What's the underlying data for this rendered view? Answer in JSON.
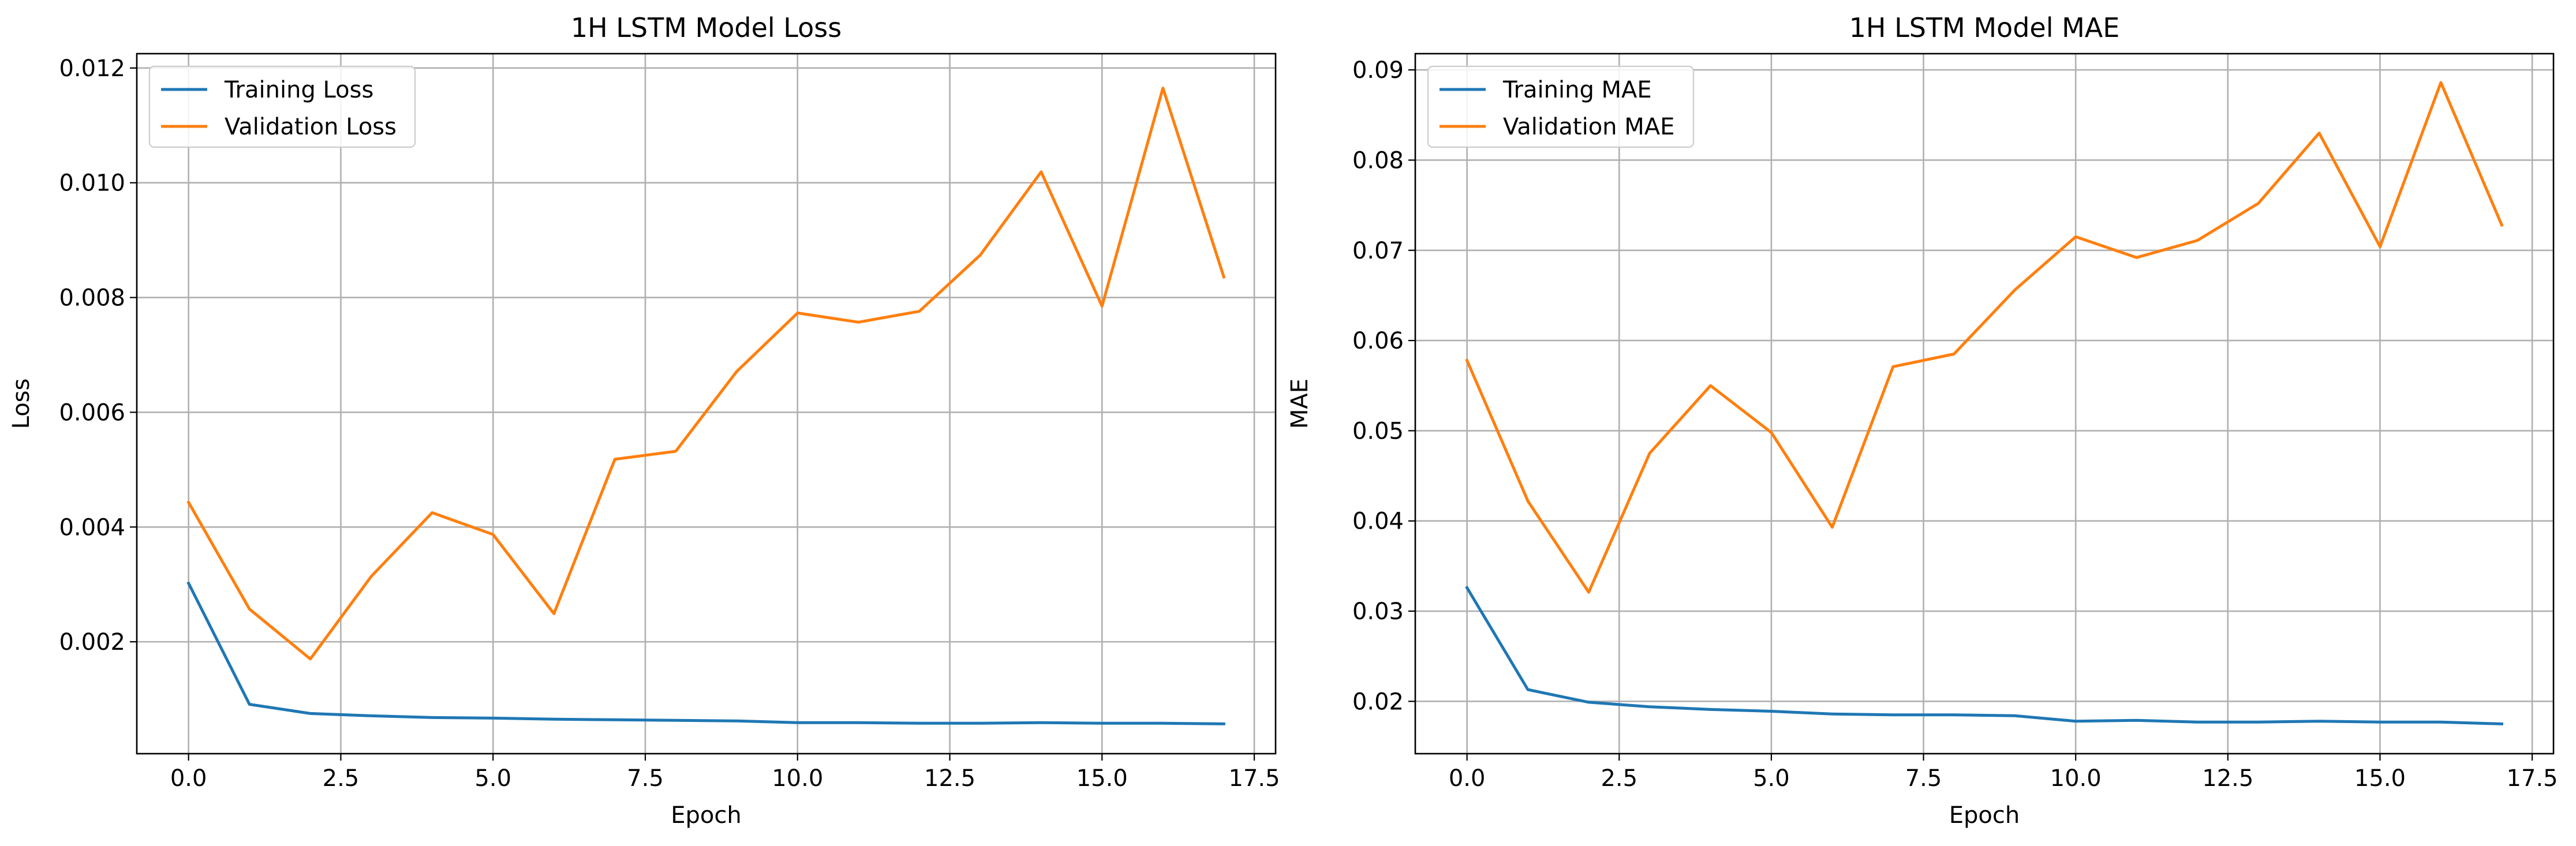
{
  "colors": {
    "training": "#1f77b4",
    "validation": "#ff7f0e",
    "grid": "#b0b0b0"
  },
  "chart_data": [
    {
      "type": "line",
      "title": "1H LSTM Model Loss",
      "xlabel": "Epoch",
      "ylabel": "Loss",
      "grid": true,
      "legend_position": "top-left",
      "xlim": [
        -0.85,
        17.85
      ],
      "ylim": [
        5e-05,
        0.01225
      ],
      "xticks": [
        0.0,
        2.5,
        5.0,
        7.5,
        10.0,
        12.5,
        15.0,
        17.5
      ],
      "xtick_labels": [
        "0.0",
        "2.5",
        "5.0",
        "7.5",
        "10.0",
        "12.5",
        "15.0",
        "17.5"
      ],
      "yticks": [
        0.002,
        0.004,
        0.006,
        0.008,
        0.01,
        0.012
      ],
      "ytick_labels": [
        "0.002",
        "0.004",
        "0.006",
        "0.008",
        "0.010",
        "0.012"
      ],
      "x": [
        0,
        1,
        2,
        3,
        4,
        5,
        6,
        7,
        8,
        9,
        10,
        11,
        12,
        13,
        14,
        15,
        16,
        17
      ],
      "series": [
        {
          "name": "Training Loss",
          "values": [
            0.00302,
            0.00091,
            0.00075,
            0.00071,
            0.00068,
            0.00067,
            0.00065,
            0.00064,
            0.00063,
            0.00062,
            0.00059,
            0.00059,
            0.00058,
            0.00058,
            0.00059,
            0.00058,
            0.00058,
            0.00057
          ]
        },
        {
          "name": "Validation Loss",
          "values": [
            0.00443,
            0.00257,
            0.0017,
            0.00314,
            0.00425,
            0.00387,
            0.00249,
            0.00518,
            0.00532,
            0.00671,
            0.00773,
            0.00757,
            0.00776,
            0.00874,
            0.01019,
            0.00785,
            0.01165,
            0.00836
          ]
        }
      ]
    },
    {
      "type": "line",
      "title": "1H LSTM Model MAE",
      "xlabel": "Epoch",
      "ylabel": "MAE",
      "grid": true,
      "legend_position": "top-left",
      "xlim": [
        -0.85,
        17.85
      ],
      "ylim": [
        0.0142,
        0.0918
      ],
      "xticks": [
        0.0,
        2.5,
        5.0,
        7.5,
        10.0,
        12.5,
        15.0,
        17.5
      ],
      "xtick_labels": [
        "0.0",
        "2.5",
        "5.0",
        "7.5",
        "10.0",
        "12.5",
        "15.0",
        "17.5"
      ],
      "yticks": [
        0.02,
        0.03,
        0.04,
        0.05,
        0.06,
        0.07,
        0.08,
        0.09
      ],
      "ytick_labels": [
        "0.02",
        "0.03",
        "0.04",
        "0.05",
        "0.06",
        "0.07",
        "0.08",
        "0.09"
      ],
      "x": [
        0,
        1,
        2,
        3,
        4,
        5,
        6,
        7,
        8,
        9,
        10,
        11,
        12,
        13,
        14,
        15,
        16,
        17
      ],
      "series": [
        {
          "name": "Training MAE",
          "values": [
            0.0326,
            0.0213,
            0.0199,
            0.0194,
            0.0191,
            0.0189,
            0.0186,
            0.0185,
            0.0185,
            0.0184,
            0.0178,
            0.0179,
            0.0177,
            0.0177,
            0.0178,
            0.0177,
            0.0177,
            0.0175
          ]
        },
        {
          "name": "Validation MAE",
          "values": [
            0.0578,
            0.0422,
            0.0321,
            0.0475,
            0.055,
            0.0498,
            0.0393,
            0.0571,
            0.0585,
            0.0656,
            0.0715,
            0.0692,
            0.0711,
            0.0752,
            0.083,
            0.0704,
            0.0886,
            0.0728
          ]
        }
      ]
    }
  ]
}
